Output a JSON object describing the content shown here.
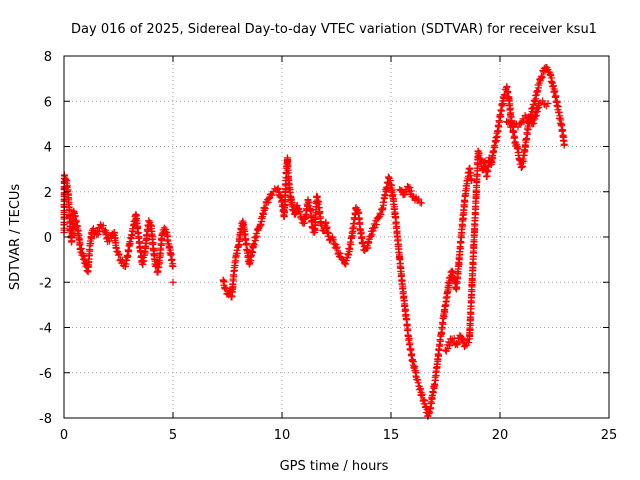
{
  "chart_data": {
    "type": "scatter",
    "title": "Day 016 of 2025, Sidereal Day-to-day VTEC variation (SDTVAR) for receiver ksu1",
    "xlabel": "GPS time / hours",
    "ylabel": "SDTVAR / TECUs",
    "xlim": [
      0,
      25
    ],
    "ylim": [
      -8,
      8
    ],
    "x_ticks": [
      0,
      5,
      10,
      15,
      20,
      25
    ],
    "y_ticks": [
      -8,
      -6,
      -4,
      -2,
      0,
      2,
      4,
      6,
      8
    ],
    "grid": true,
    "marker": "+",
    "color": "#ff0000",
    "series": [
      {
        "values": [
          [
            0.0,
            0.2
          ],
          [
            0.02,
            2.7
          ],
          [
            0.1,
            2.5
          ],
          [
            0.2,
            1.9
          ],
          [
            0.25,
            1.0
          ],
          [
            0.3,
            0.3
          ],
          [
            0.35,
            -0.2
          ],
          [
            0.45,
            1.1
          ],
          [
            0.5,
            0.9
          ],
          [
            0.6,
            0.5
          ],
          [
            0.7,
            -0.1
          ],
          [
            0.75,
            -0.5
          ],
          [
            1.1,
            -1.5
          ],
          [
            1.2,
            -0.3
          ],
          [
            1.3,
            0.3
          ],
          [
            1.5,
            0.1
          ],
          [
            1.7,
            0.5
          ],
          [
            1.9,
            0.3
          ],
          [
            2.0,
            -0.2
          ],
          [
            2.3,
            0.2
          ],
          [
            2.4,
            -0.5
          ],
          [
            2.5,
            -0.8
          ],
          [
            2.6,
            -1.0
          ],
          [
            2.8,
            -1.3
          ],
          [
            2.9,
            -0.9
          ],
          [
            3.0,
            -0.4
          ],
          [
            3.1,
            0.1
          ],
          [
            3.2,
            0.5
          ],
          [
            3.3,
            1.0
          ],
          [
            3.4,
            0.2
          ],
          [
            3.5,
            -0.6
          ],
          [
            3.6,
            -1.2
          ],
          [
            3.7,
            -0.8
          ],
          [
            3.8,
            0.1
          ],
          [
            3.9,
            0.7
          ],
          [
            4.0,
            0.5
          ],
          [
            4.1,
            -0.5
          ],
          [
            4.2,
            -1.3
          ],
          [
            4.3,
            -1.5
          ],
          [
            4.4,
            -0.9
          ],
          [
            4.5,
            0.1
          ],
          [
            4.6,
            0.4
          ],
          [
            4.7,
            0.2
          ],
          [
            4.8,
            -0.3
          ],
          [
            4.9,
            -0.8
          ],
          [
            5.0,
            -1.3
          ],
          [
            5.0,
            -2.0
          ],
          [
            7.3,
            -1.9
          ],
          [
            7.4,
            -2.3
          ],
          [
            7.5,
            -2.5
          ],
          [
            7.6,
            -2.4
          ],
          [
            7.7,
            -2.6
          ],
          [
            7.8,
            -1.5
          ],
          [
            7.9,
            -0.8
          ],
          [
            8.0,
            -0.4
          ],
          [
            8.1,
            0.2
          ],
          [
            8.2,
            0.7
          ],
          [
            8.3,
            0.1
          ],
          [
            8.4,
            -0.6
          ],
          [
            8.5,
            -1.2
          ],
          [
            8.6,
            -0.8
          ],
          [
            8.7,
            -0.3
          ],
          [
            8.8,
            0.0
          ],
          [
            8.9,
            0.3
          ],
          [
            9.0,
            0.5
          ],
          [
            9.1,
            0.9
          ],
          [
            9.2,
            1.3
          ],
          [
            9.3,
            1.5
          ],
          [
            9.4,
            1.7
          ],
          [
            9.5,
            1.9
          ],
          [
            9.6,
            2.0
          ],
          [
            9.8,
            2.1
          ],
          [
            10.0,
            1.6
          ],
          [
            10.1,
            0.9
          ],
          [
            10.2,
            2.8
          ],
          [
            10.25,
            3.5
          ],
          [
            10.3,
            2.5
          ],
          [
            10.4,
            1.8
          ],
          [
            10.5,
            1.2
          ],
          [
            10.6,
            1.0
          ],
          [
            10.7,
            1.4
          ],
          [
            10.8,
            1.1
          ],
          [
            10.9,
            0.8
          ],
          [
            11.0,
            0.6
          ],
          [
            11.1,
            1.0
          ],
          [
            11.2,
            1.6
          ],
          [
            11.3,
            1.2
          ],
          [
            11.4,
            0.4
          ],
          [
            11.5,
            0.2
          ],
          [
            11.6,
            1.8
          ],
          [
            11.7,
            1.3
          ],
          [
            11.8,
            0.5
          ],
          [
            11.9,
            0.3
          ],
          [
            12.0,
            0.6
          ],
          [
            12.1,
            0.2
          ],
          [
            12.2,
            -0.1
          ],
          [
            12.3,
            0.0
          ],
          [
            12.4,
            -0.3
          ],
          [
            12.5,
            -0.5
          ],
          [
            12.6,
            -0.7
          ],
          [
            12.7,
            -0.9
          ],
          [
            12.8,
            -1.0
          ],
          [
            12.9,
            -1.2
          ],
          [
            13.0,
            -0.9
          ],
          [
            13.1,
            -0.5
          ],
          [
            13.2,
            0.0
          ],
          [
            13.3,
            0.6
          ],
          [
            13.4,
            1.3
          ],
          [
            13.5,
            1.1
          ],
          [
            13.6,
            0.3
          ],
          [
            13.7,
            -0.3
          ],
          [
            13.8,
            -0.6
          ],
          [
            13.9,
            -0.5
          ],
          [
            14.0,
            -0.1
          ],
          [
            14.2,
            0.4
          ],
          [
            14.4,
            0.8
          ],
          [
            14.6,
            1.2
          ],
          [
            14.7,
            1.7
          ],
          [
            14.8,
            2.2
          ],
          [
            14.9,
            2.6
          ],
          [
            15.0,
            2.3
          ],
          [
            15.1,
            1.7
          ],
          [
            15.2,
            0.9
          ],
          [
            15.3,
            0.0
          ],
          [
            15.4,
            -1.0
          ],
          [
            15.5,
            -1.9
          ],
          [
            15.6,
            -2.8
          ],
          [
            15.7,
            -3.6
          ],
          [
            15.8,
            -4.4
          ],
          [
            15.9,
            -5.0
          ],
          [
            16.0,
            -5.5
          ],
          [
            16.1,
            -5.9
          ],
          [
            16.2,
            -6.3
          ],
          [
            16.3,
            -6.6
          ],
          [
            16.4,
            -7.0
          ],
          [
            16.5,
            -7.2
          ],
          [
            16.6,
            -7.5
          ],
          [
            16.7,
            -7.9
          ],
          [
            16.8,
            -7.6
          ],
          [
            16.9,
            -7.0
          ],
          [
            17.0,
            -6.5
          ],
          [
            17.1,
            -5.8
          ],
          [
            17.2,
            -5.0
          ],
          [
            17.3,
            -4.3
          ],
          [
            17.4,
            -3.6
          ],
          [
            17.5,
            -3.0
          ],
          [
            17.6,
            -2.4
          ],
          [
            17.7,
            -1.8
          ],
          [
            17.8,
            -1.5
          ],
          [
            17.9,
            -1.9
          ],
          [
            18.0,
            -2.3
          ],
          [
            18.1,
            -1.3
          ],
          [
            18.2,
            -0.2
          ],
          [
            18.3,
            0.8
          ],
          [
            18.4,
            1.8
          ],
          [
            18.5,
            2.5
          ],
          [
            18.6,
            3.0
          ],
          [
            18.7,
            2.5
          ],
          [
            15.4,
            2.1
          ],
          [
            15.6,
            1.9
          ],
          [
            15.8,
            2.2
          ],
          [
            16.0,
            1.8
          ],
          [
            16.2,
            1.6
          ],
          [
            16.4,
            1.5
          ],
          [
            17.5,
            -5.0
          ],
          [
            17.8,
            -4.5
          ],
          [
            18.0,
            -4.7
          ],
          [
            18.2,
            -4.4
          ],
          [
            18.4,
            -4.8
          ],
          [
            18.6,
            -4.5
          ],
          [
            19.0,
            3.8
          ],
          [
            19.1,
            3.4
          ],
          [
            19.2,
            3.0
          ],
          [
            19.3,
            3.3
          ],
          [
            19.4,
            2.7
          ],
          [
            19.5,
            3.5
          ],
          [
            19.6,
            3.2
          ],
          [
            19.7,
            3.8
          ],
          [
            19.8,
            4.2
          ],
          [
            19.9,
            4.7
          ],
          [
            20.0,
            5.3
          ],
          [
            20.1,
            5.8
          ],
          [
            20.2,
            6.3
          ],
          [
            20.3,
            6.6
          ],
          [
            20.4,
            6.2
          ],
          [
            20.5,
            5.3
          ],
          [
            20.6,
            4.7
          ],
          [
            20.7,
            4.2
          ],
          [
            20.8,
            3.9
          ],
          [
            20.9,
            3.4
          ],
          [
            21.0,
            3.1
          ],
          [
            21.1,
            3.6
          ],
          [
            21.2,
            4.3
          ],
          [
            21.3,
            4.9
          ],
          [
            21.4,
            5.4
          ],
          [
            21.5,
            5.7
          ],
          [
            21.6,
            6.0
          ],
          [
            21.7,
            6.4
          ],
          [
            21.8,
            6.8
          ],
          [
            21.9,
            7.1
          ],
          [
            22.0,
            7.3
          ],
          [
            22.1,
            7.5
          ],
          [
            22.2,
            7.4
          ],
          [
            22.3,
            7.2
          ],
          [
            22.4,
            6.8
          ],
          [
            22.5,
            6.4
          ],
          [
            22.6,
            6.0
          ],
          [
            22.7,
            5.5
          ],
          [
            22.8,
            5.0
          ],
          [
            22.9,
            4.5
          ],
          [
            22.95,
            4.1
          ],
          [
            20.3,
            5.1
          ],
          [
            20.6,
            4.9
          ],
          [
            20.9,
            5.0
          ],
          [
            21.2,
            5.3
          ],
          [
            21.5,
            5.0
          ],
          [
            21.8,
            5.9
          ],
          [
            22.2,
            5.9
          ]
        ]
      }
    ]
  }
}
